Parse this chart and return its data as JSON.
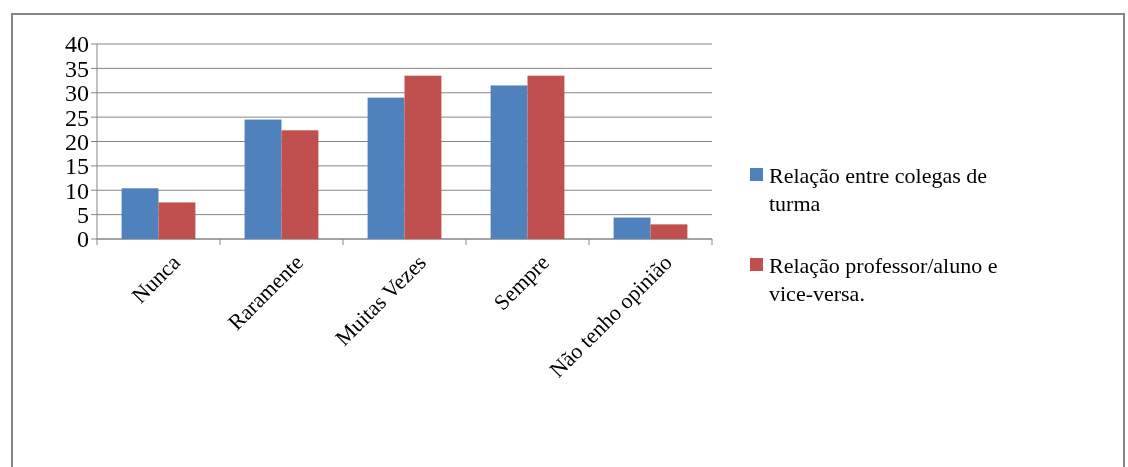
{
  "chart_data": {
    "type": "bar",
    "categories": [
      "Nunca",
      "Raramente",
      "Muitas Vezes",
      "Sempre",
      "Não tenho opinião"
    ],
    "series": [
      {
        "name": "Relação entre colegas de turma",
        "color": "#4f81bd",
        "values": [
          10.4,
          24.5,
          29,
          31.5,
          4.4
        ]
      },
      {
        "name": "Relação professor/aluno e vice-versa.",
        "color": "#c0504d",
        "values": [
          7.5,
          22.3,
          33.5,
          33.5,
          3
        ]
      }
    ],
    "ylim": [
      0,
      40
    ],
    "yticks": [
      0,
      5,
      10,
      15,
      20,
      25,
      30,
      35,
      40
    ],
    "grid": "y",
    "legend": "right"
  }
}
